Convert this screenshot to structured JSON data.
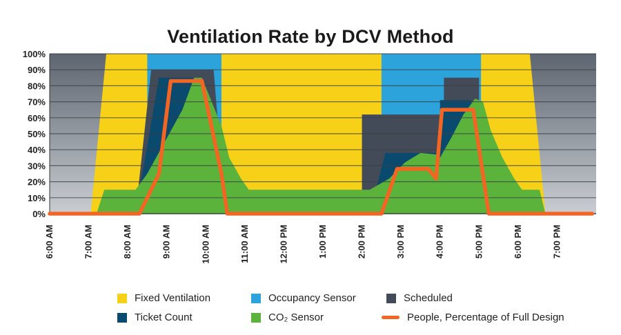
{
  "chart_data": {
    "type": "area",
    "title": "Ventilation Rate by DCV Method",
    "xlabel": "",
    "ylabel": "",
    "ylim": [
      0,
      100
    ],
    "y_ticks": [
      "0%",
      "10%",
      "20%",
      "30%",
      "40%",
      "50%",
      "60%",
      "70%",
      "80%",
      "90%",
      "100%"
    ],
    "x_ticks": [
      "6:00 AM",
      "7:00 AM",
      "8:00 AM",
      "9:00 AM",
      "10:00 AM",
      "11:00 AM",
      "12:00 PM",
      "1:00 PM",
      "2:00 PM",
      "3:00 PM",
      "4:00 PM",
      "5:00 PM",
      "6:00 PM",
      "7:00 PM"
    ],
    "x_unit": "hour of day",
    "x_range": [
      6,
      20
    ],
    "grid": true,
    "legend_position": "bottom",
    "series": [
      {
        "name": "Fixed Ventilation",
        "color": "#f7d117",
        "kind": "area",
        "points": [
          [
            6,
            100
          ],
          [
            7.2,
            100
          ],
          [
            7.45,
            100
          ],
          [
            12,
            100
          ],
          [
            13.5,
            100
          ],
          [
            17.2,
            100
          ],
          [
            18.35,
            100
          ],
          [
            18.55,
            100
          ],
          [
            20,
            100
          ]
        ],
        "gaps": [
          [
            6,
            7.2
          ],
          [
            18.55,
            20
          ]
        ],
        "values_note": ""
      },
      {
        "name": "Occupancy Sensor",
        "color": "#2ca3db",
        "kind": "area",
        "points": [
          [
            8.5,
            100
          ],
          [
            10.4,
            100
          ],
          [
            14.5,
            100
          ],
          [
            17.0,
            100
          ]
        ]
      },
      {
        "name": "Scheduled",
        "color": "#424b57",
        "kind": "area",
        "points": [
          [
            8.2,
            0
          ],
          [
            8.6,
            90
          ],
          [
            10.2,
            90
          ],
          [
            10.5,
            0
          ],
          [
            14.0,
            0
          ],
          [
            14.0,
            62
          ],
          [
            15.3,
            62
          ],
          [
            15.3,
            62
          ],
          [
            16.1,
            62
          ],
          [
            16.1,
            85
          ],
          [
            17.0,
            85
          ],
          [
            17.0,
            0
          ]
        ]
      },
      {
        "name": "Ticket Count",
        "color": "#0a4a6e",
        "kind": "area",
        "points": [
          [
            8.2,
            0
          ],
          [
            8.8,
            85
          ],
          [
            9.9,
            85
          ],
          [
            10.4,
            0
          ],
          [
            14.2,
            0
          ],
          [
            14.6,
            38
          ],
          [
            15.6,
            38
          ],
          [
            15.6,
            38
          ],
          [
            16.0,
            38
          ],
          [
            16.0,
            71
          ],
          [
            16.8,
            71
          ],
          [
            17.0,
            0
          ]
        ]
      },
      {
        "name": "CO₂ Sensor",
        "color": "#5cb33c",
        "kind": "area",
        "points": [
          [
            6,
            0
          ],
          [
            7.2,
            0
          ],
          [
            7.4,
            15
          ],
          [
            8.2,
            15
          ],
          [
            8.5,
            25
          ],
          [
            9.4,
            65
          ],
          [
            9.7,
            85
          ],
          [
            9.9,
            85
          ],
          [
            10.4,
            55
          ],
          [
            10.6,
            35
          ],
          [
            10.9,
            22
          ],
          [
            11.1,
            15
          ],
          [
            14.2,
            15
          ],
          [
            14.7,
            22
          ],
          [
            15.1,
            32
          ],
          [
            15.5,
            38
          ],
          [
            15.9,
            37
          ],
          [
            16.0,
            35
          ],
          [
            16.3,
            48
          ],
          [
            16.6,
            62
          ],
          [
            16.9,
            72
          ],
          [
            17.1,
            70
          ],
          [
            17.3,
            52
          ],
          [
            17.6,
            35
          ],
          [
            17.9,
            22
          ],
          [
            18.1,
            15
          ],
          [
            18.55,
            15
          ],
          [
            18.7,
            0
          ]
        ]
      },
      {
        "name": "People, Percentage of Full Design",
        "color": "#f26522",
        "kind": "line",
        "points": [
          [
            6,
            0
          ],
          [
            8.3,
            0
          ],
          [
            8.8,
            25
          ],
          [
            9.1,
            83
          ],
          [
            9.9,
            83
          ],
          [
            10.4,
            25
          ],
          [
            10.55,
            0
          ],
          [
            14.5,
            0
          ],
          [
            14.9,
            28
          ],
          [
            15.7,
            28
          ],
          [
            15.9,
            22
          ],
          [
            16.05,
            65
          ],
          [
            16.85,
            65
          ],
          [
            17.25,
            0
          ],
          [
            19.9,
            0
          ]
        ]
      }
    ]
  }
}
